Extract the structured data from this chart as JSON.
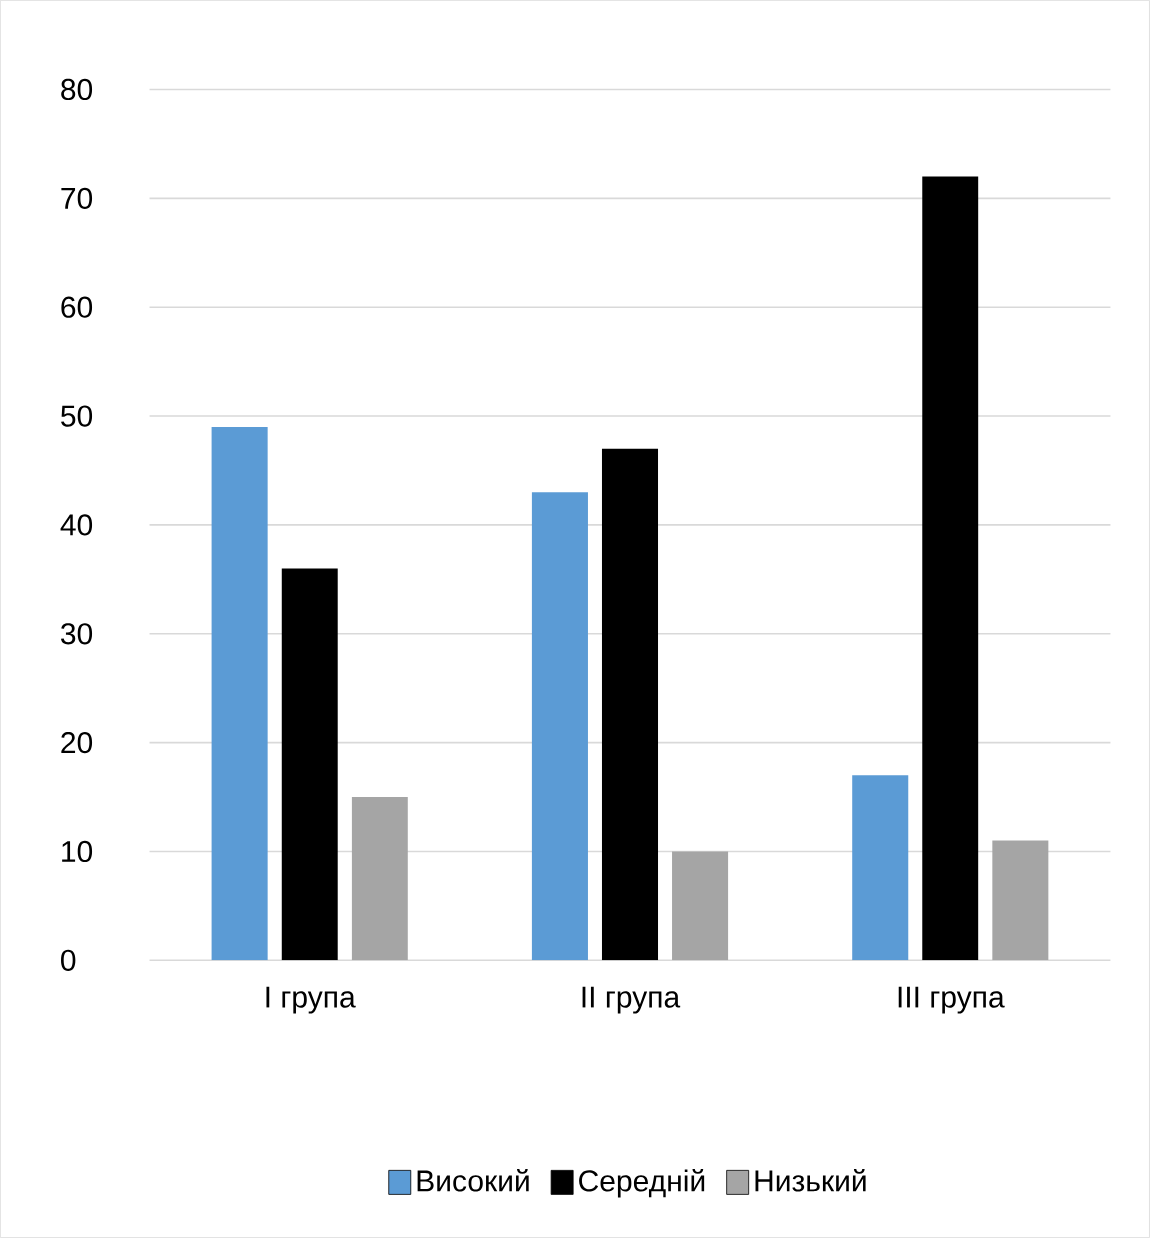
{
  "chart_data": {
    "type": "bar",
    "categories": [
      "I група",
      "II група",
      "III група"
    ],
    "series": [
      {
        "name": "Високий",
        "color": "#5b9bd5",
        "values": [
          49,
          43,
          17
        ]
      },
      {
        "name": "Середній",
        "color": "#000000",
        "values": [
          36,
          47,
          72
        ]
      },
      {
        "name": "Низький",
        "color": "#a5a5a5",
        "values": [
          15,
          10,
          11
        ]
      }
    ],
    "ylim": [
      0,
      80
    ],
    "yticks": [
      0,
      10,
      20,
      30,
      40,
      50,
      60,
      70,
      80
    ],
    "grid": "y",
    "legend": "bottom"
  }
}
